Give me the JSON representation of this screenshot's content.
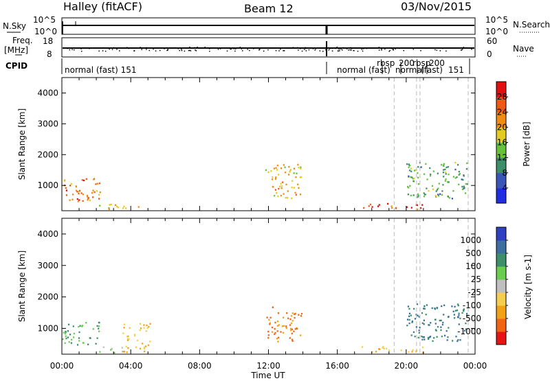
{
  "header": {
    "station": "Halley (fitACF)",
    "beam": "Beam 12",
    "date": "03/Nov/2015"
  },
  "strips": {
    "nsky_label": "N.Sky",
    "nsearch_label": "N.Search",
    "nsky_ticks": [
      "10^5",
      "10^0"
    ],
    "nsearch_ticks": [
      "10^5",
      "10^0"
    ],
    "freq_label_1": "Freq.",
    "freq_label_2": "[MHz]",
    "freq_ticks": [
      "18",
      "8"
    ],
    "nave_label": "Nave",
    "nave_ticks": [
      "60",
      "0"
    ],
    "cpid_label": "CPID"
  },
  "cpid_labels": [
    "normal (fast) 151",
    "normal (fast)",
    "rbsp",
    "200",
    "normal",
    "rbsp",
    "200",
    "(fast)",
    "151"
  ],
  "colors": {
    "power_scale": [
      "#1f2ee0",
      "#3a55b8",
      "#3d8f6a",
      "#66c23a",
      "#e3cc1f",
      "#f08c14",
      "#ee5a14",
      "#e21010"
    ],
    "velocity_scale": [
      "#e61414",
      "#f06414",
      "#f2a014",
      "#f5cd50",
      "#bfbfbf",
      "#6acd4f",
      "#3d8f6a",
      "#3a6fa0",
      "#2e3fc0"
    ]
  },
  "chart_data": [
    {
      "type": "heatmap",
      "title": "",
      "xlabel": "Time UT",
      "ylabel": "Slant Range [km]",
      "x_ticks": [
        "00:00",
        "04:00",
        "08:00",
        "12:00",
        "16:00",
        "20:00",
        "00:00"
      ],
      "y_ticks": [
        "1000",
        "2000",
        "3000",
        "4000"
      ],
      "ylim": [
        180,
        4500
      ],
      "colorbar_label": "Power [dB]",
      "colorbar_ticks": [
        "4",
        "8",
        "12",
        "16",
        "20",
        "24",
        "28"
      ],
      "scatter_regions": [
        {
          "t": [
            0.0,
            2.2
          ],
          "r": [
            500,
            1250
          ],
          "power": 24
        },
        {
          "t": [
            0.8,
            1.8
          ],
          "r": [
            550,
            800
          ],
          "power": 28
        },
        {
          "t": [
            2.0,
            3.6
          ],
          "r": [
            250,
            450
          ],
          "power": 16
        },
        {
          "t": [
            3.5,
            5.1
          ],
          "r": [
            250,
            350
          ],
          "power": 20
        },
        {
          "t": [
            11.8,
            13.9
          ],
          "r": [
            600,
            1700
          ],
          "power": 20
        },
        {
          "t": [
            17.4,
            21.0
          ],
          "r": [
            250,
            450
          ],
          "power": 28
        },
        {
          "t": [
            20.0,
            23.6
          ],
          "r": [
            600,
            1800
          ],
          "power": 12
        }
      ]
    },
    {
      "type": "heatmap",
      "title": "",
      "xlabel": "Time UT",
      "ylabel": "Slant Range [km]",
      "x_ticks": [
        "00:00",
        "04:00",
        "08:00",
        "12:00",
        "16:00",
        "20:00",
        "00:00"
      ],
      "y_ticks": [
        "1000",
        "2000",
        "3000",
        "4000"
      ],
      "ylim": [
        180,
        4500
      ],
      "colorbar_label": "Velocity [m s-1]",
      "colorbar_ticks": [
        "1000",
        "500",
        "100",
        "25",
        "-25",
        "-100",
        "-500",
        "-1000"
      ],
      "scatter_regions": [
        {
          "t": [
            0.0,
            2.2
          ],
          "r": [
            500,
            1250
          ],
          "velocity": 100
        },
        {
          "t": [
            2.0,
            3.6
          ],
          "r": [
            250,
            450
          ],
          "velocity": 25
        },
        {
          "t": [
            3.5,
            5.1
          ],
          "r": [
            250,
            1200
          ],
          "velocity": -100
        },
        {
          "t": [
            11.8,
            13.9
          ],
          "r": [
            600,
            1700
          ],
          "velocity": -500
        },
        {
          "t": [
            17.4,
            21.0
          ],
          "r": [
            250,
            450
          ],
          "velocity": -100
        },
        {
          "t": [
            20.0,
            23.6
          ],
          "r": [
            600,
            1800
          ],
          "velocity": 500
        }
      ]
    }
  ]
}
